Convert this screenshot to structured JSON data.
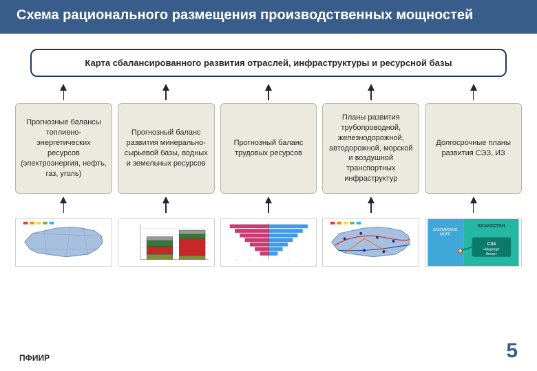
{
  "title": "Схема рационального размещения производственных мощностей",
  "topBox": "Карта сбалансированного развития отраслей, инфраструктуры и ресурсной базы",
  "colors": {
    "titleBar": "#385d8a",
    "titleText": "#ffffff",
    "boxBorder": "#1a3863",
    "middleBg": "#ece9de",
    "middleBorder": "#b8b4a6",
    "text": "#262626",
    "pageNum": "#385d8a",
    "mapFill": "#a8c0e0",
    "mapStroke": "#6f8db0",
    "sezGreen": "#24b7a4",
    "sezBlue": "#3fa8d8"
  },
  "columns": [
    {
      "label": "Прогнозные балансы топливно-энергетических ресурсов (электроэнергия, нефть, газ, уголь)",
      "thumb": "map-legend"
    },
    {
      "label": "Прогнозный баланс развития минерально-сырьевой базы, водных и земельных ресурсов",
      "thumb": "stacked-bars"
    },
    {
      "label": "Прогнозный баланс трудовых ресурсов",
      "thumb": "pyramid"
    },
    {
      "label": "Планы развития трубопроводной, железнодорожной, автодорожной, морской и воздушной транспортных инфраструктур",
      "thumb": "map-routes"
    },
    {
      "label": "Долгосрочные планы развития СЭЗ, ИЗ",
      "thumb": "sez-map"
    }
  ],
  "thumbnails": {
    "legendDots": [
      "#e53935",
      "#fb8c00",
      "#fdd835",
      "#7cb342",
      "#29b6f6"
    ],
    "stackedBars": {
      "bg": "#ffffff",
      "bars": [
        {
          "x": 40,
          "w": 40,
          "segments": [
            {
              "h": 8,
              "c": "#7e8e3d"
            },
            {
              "h": 12,
              "c": "#c62828"
            },
            {
              "h": 9,
              "c": "#2e7d32"
            },
            {
              "h": 6,
              "c": "#999999"
            }
          ]
        },
        {
          "x": 90,
          "w": 40,
          "segments": [
            {
              "h": 6,
              "c": "#7e8e3d"
            },
            {
              "h": 26,
              "c": "#c62828"
            },
            {
              "h": 7,
              "c": "#2e7d32"
            },
            {
              "h": 6,
              "c": "#999999"
            }
          ]
        }
      ]
    },
    "pyramid": {
      "bars": 7,
      "maxW": 60,
      "leftC": "#c2185b",
      "rightC": "#1e88e5"
    },
    "sez": {
      "left": "#3fa8d8",
      "right": "#24b7a4",
      "labelTop": "КАЗАХСТАН",
      "badge": "СЭЗ «Морпорт Актау»"
    }
  },
  "footerLeft": "ПФИИР",
  "pageNumber": "5"
}
